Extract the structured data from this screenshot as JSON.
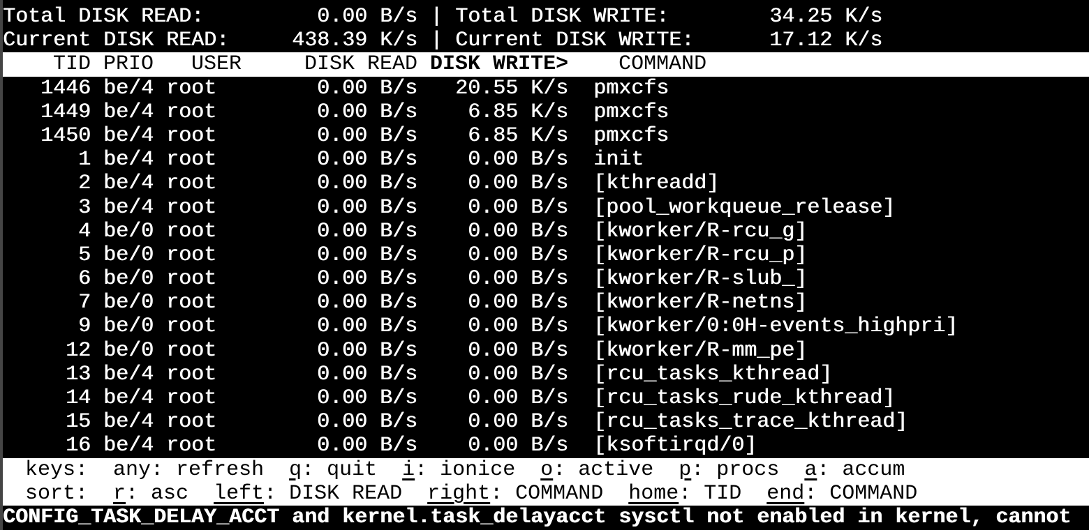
{
  "terminal": {
    "app": "iotop",
    "colors": {
      "background": "#000000",
      "foreground": "#ffffff",
      "band_background": "#ffffff",
      "band_foreground": "#000000"
    },
    "summary": {
      "total_read_label": "Total DISK READ:",
      "total_read_value": "0.00 B/s",
      "total_write_label": "Total DISK WRITE:",
      "total_write_value": "34.25 K/s",
      "current_read_label": "Current DISK READ:",
      "current_read_value": "438.39 K/s",
      "current_write_label": "Current DISK WRITE:",
      "current_write_value": "17.12 K/s",
      "separator": " | "
    },
    "table": {
      "header": {
        "tid": "TID",
        "prio": "PRIO",
        "user": "USER",
        "read": "DISK READ",
        "write": "DISK WRITE>",
        "command": "COMMAND"
      },
      "sort_column": "DISK WRITE>",
      "sort_indicator": ">",
      "rows": [
        {
          "tid": "1446",
          "prio": "be/4",
          "user": "root",
          "read": "0.00 B/s",
          "write": "20.55 K/s",
          "command": "pmxcfs"
        },
        {
          "tid": "1449",
          "prio": "be/4",
          "user": "root",
          "read": "0.00 B/s",
          "write": "6.85 K/s",
          "command": "pmxcfs"
        },
        {
          "tid": "1450",
          "prio": "be/4",
          "user": "root",
          "read": "0.00 B/s",
          "write": "6.85 K/s",
          "command": "pmxcfs"
        },
        {
          "tid": "1",
          "prio": "be/4",
          "user": "root",
          "read": "0.00 B/s",
          "write": "0.00 B/s",
          "command": "init"
        },
        {
          "tid": "2",
          "prio": "be/4",
          "user": "root",
          "read": "0.00 B/s",
          "write": "0.00 B/s",
          "command": "[kthreadd]"
        },
        {
          "tid": "3",
          "prio": "be/4",
          "user": "root",
          "read": "0.00 B/s",
          "write": "0.00 B/s",
          "command": "[pool_workqueue_release]"
        },
        {
          "tid": "4",
          "prio": "be/0",
          "user": "root",
          "read": "0.00 B/s",
          "write": "0.00 B/s",
          "command": "[kworker/R-rcu_g]"
        },
        {
          "tid": "5",
          "prio": "be/0",
          "user": "root",
          "read": "0.00 B/s",
          "write": "0.00 B/s",
          "command": "[kworker/R-rcu_p]"
        },
        {
          "tid": "6",
          "prio": "be/0",
          "user": "root",
          "read": "0.00 B/s",
          "write": "0.00 B/s",
          "command": "[kworker/R-slub_]"
        },
        {
          "tid": "7",
          "prio": "be/0",
          "user": "root",
          "read": "0.00 B/s",
          "write": "0.00 B/s",
          "command": "[kworker/R-netns]"
        },
        {
          "tid": "9",
          "prio": "be/0",
          "user": "root",
          "read": "0.00 B/s",
          "write": "0.00 B/s",
          "command": "[kworker/0:0H-events_highpri]"
        },
        {
          "tid": "12",
          "prio": "be/0",
          "user": "root",
          "read": "0.00 B/s",
          "write": "0.00 B/s",
          "command": "[kworker/R-mm_pe]"
        },
        {
          "tid": "13",
          "prio": "be/4",
          "user": "root",
          "read": "0.00 B/s",
          "write": "0.00 B/s",
          "command": "[rcu_tasks_kthread]"
        },
        {
          "tid": "14",
          "prio": "be/4",
          "user": "root",
          "read": "0.00 B/s",
          "write": "0.00 B/s",
          "command": "[rcu_tasks_rude_kthread]"
        },
        {
          "tid": "15",
          "prio": "be/4",
          "user": "root",
          "read": "0.00 B/s",
          "write": "0.00 B/s",
          "command": "[rcu_tasks_trace_kthread]"
        },
        {
          "tid": "16",
          "prio": "be/4",
          "user": "root",
          "read": "0.00 B/s",
          "write": "0.00 B/s",
          "command": "[ksoftirqd/0]"
        }
      ]
    },
    "help": {
      "keys_label": "keys:",
      "keys_items": [
        {
          "key": "any",
          "desc": "refresh",
          "hotkey": false
        },
        {
          "key": "q",
          "desc": "quit",
          "hotkey": true
        },
        {
          "key": "i",
          "desc": "ionice",
          "hotkey": true
        },
        {
          "key": "o",
          "desc": "active",
          "hotkey": true
        },
        {
          "key": "p",
          "desc": "procs",
          "hotkey": true
        },
        {
          "key": "a",
          "desc": "accum",
          "hotkey": true
        }
      ],
      "sort_label": "sort:",
      "sort_items": [
        {
          "key": "r",
          "desc": "asc",
          "hotkey": true
        },
        {
          "key": "left",
          "desc": "DISK READ",
          "hotkey": true
        },
        {
          "key": "right",
          "desc": "COMMAND",
          "hotkey": true
        },
        {
          "key": "home",
          "desc": "TID",
          "hotkey": true
        },
        {
          "key": "end",
          "desc": "COMMAND",
          "hotkey": true
        }
      ]
    },
    "status": "CONFIG_TASK_DELAY_ACCT and kernel.task_delayacct sysctl not enabled in kernel, cannot"
  }
}
